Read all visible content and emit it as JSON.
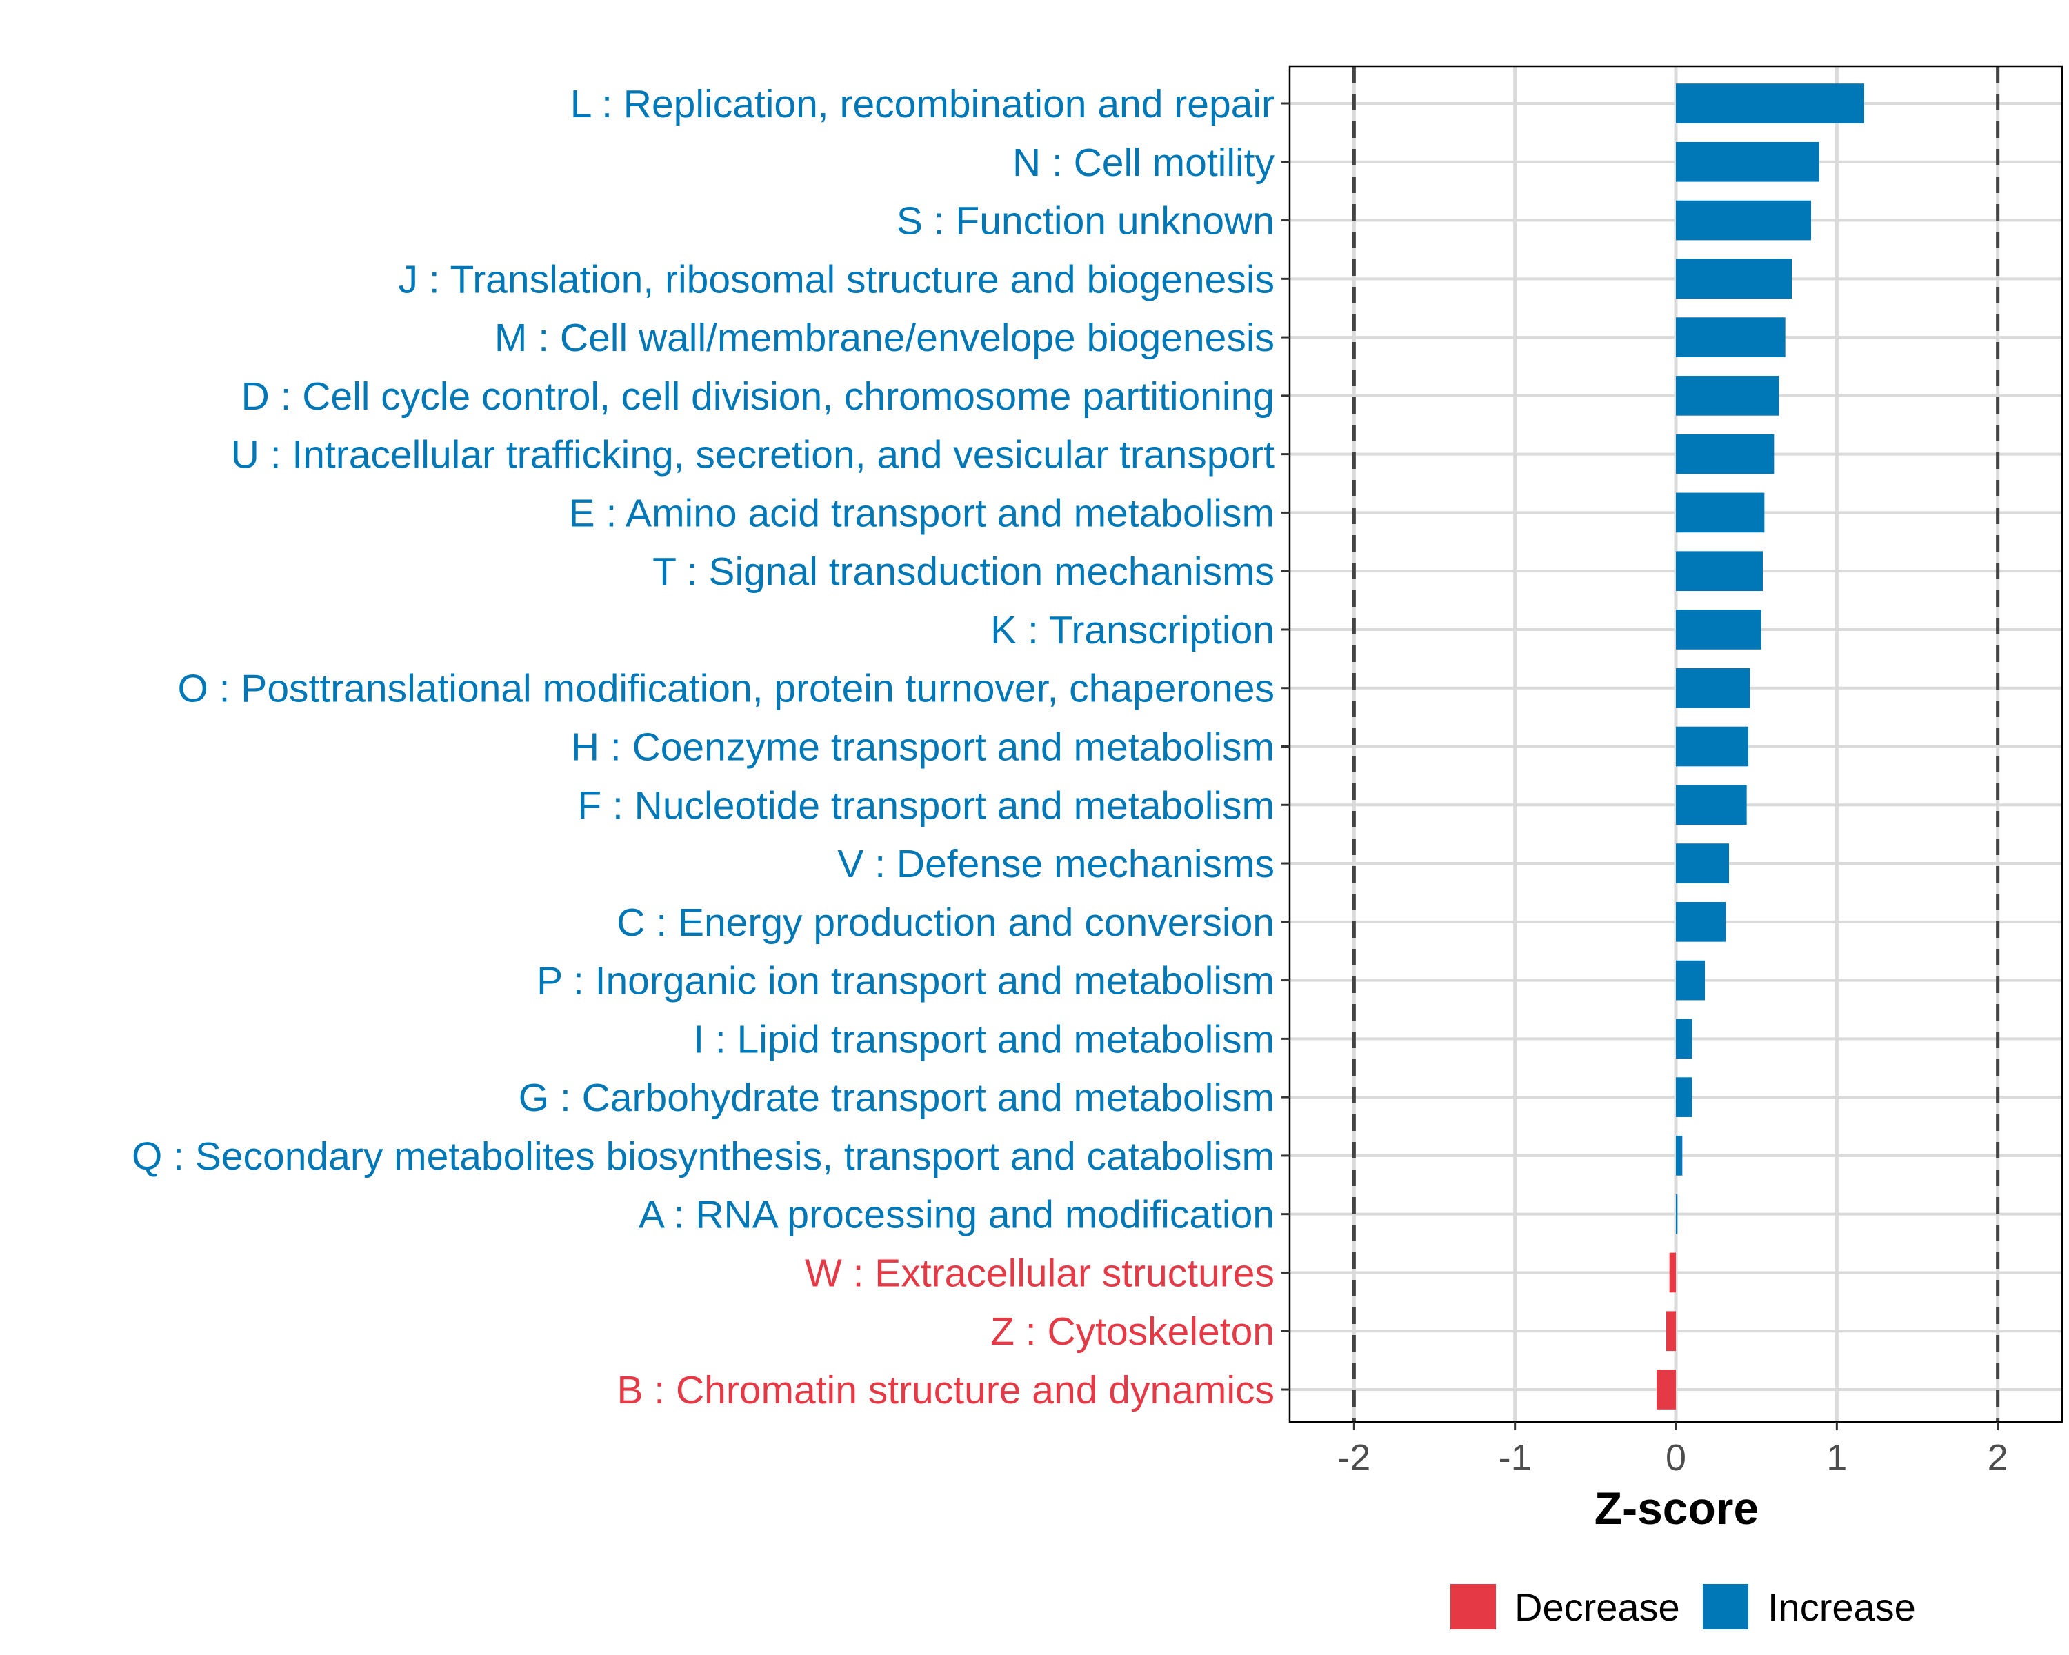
{
  "chart_data": {
    "type": "bar",
    "orientation": "horizontal",
    "xlabel": "Z-score",
    "ylabel": "",
    "xlim": [
      -2.4,
      2.4
    ],
    "xticks": [
      -2,
      -1,
      0,
      1,
      2
    ],
    "xtick_labels": [
      "-2",
      "-1",
      "0",
      "1",
      "2"
    ],
    "reference_lines": [
      -2,
      2
    ],
    "grid": true,
    "categories": [
      "L : Replication, recombination and repair",
      "N : Cell motility",
      "S : Function unknown",
      "J : Translation, ribosomal structure and biogenesis",
      "M : Cell wall/membrane/envelope biogenesis",
      "D : Cell cycle control, cell division, chromosome partitioning",
      "U : Intracellular trafficking, secretion, and vesicular transport",
      "E : Amino acid transport and metabolism",
      "T : Signal transduction mechanisms",
      "K : Transcription",
      "O : Posttranslational modification, protein turnover, chaperones",
      "H : Coenzyme transport and metabolism",
      "F : Nucleotide transport and metabolism",
      "V : Defense mechanisms",
      "C : Energy production and conversion",
      "P : Inorganic ion transport and metabolism",
      "I : Lipid transport and metabolism",
      "G : Carbohydrate transport and metabolism",
      "Q : Secondary metabolites biosynthesis, transport and catabolism",
      "A : RNA processing and modification",
      "W : Extracellular structures",
      "Z : Cytoskeleton",
      "B : Chromatin structure and dynamics"
    ],
    "values": [
      1.17,
      0.89,
      0.84,
      0.72,
      0.68,
      0.64,
      0.61,
      0.55,
      0.54,
      0.53,
      0.46,
      0.45,
      0.44,
      0.33,
      0.31,
      0.18,
      0.1,
      0.1,
      0.04,
      0.01,
      -0.04,
      -0.06,
      -0.12
    ],
    "legend": {
      "placement": "bottom",
      "entries": [
        {
          "label": "Decrease",
          "color": "#E63946"
        },
        {
          "label": "Increase",
          "color": "#0077B6"
        }
      ]
    }
  }
}
